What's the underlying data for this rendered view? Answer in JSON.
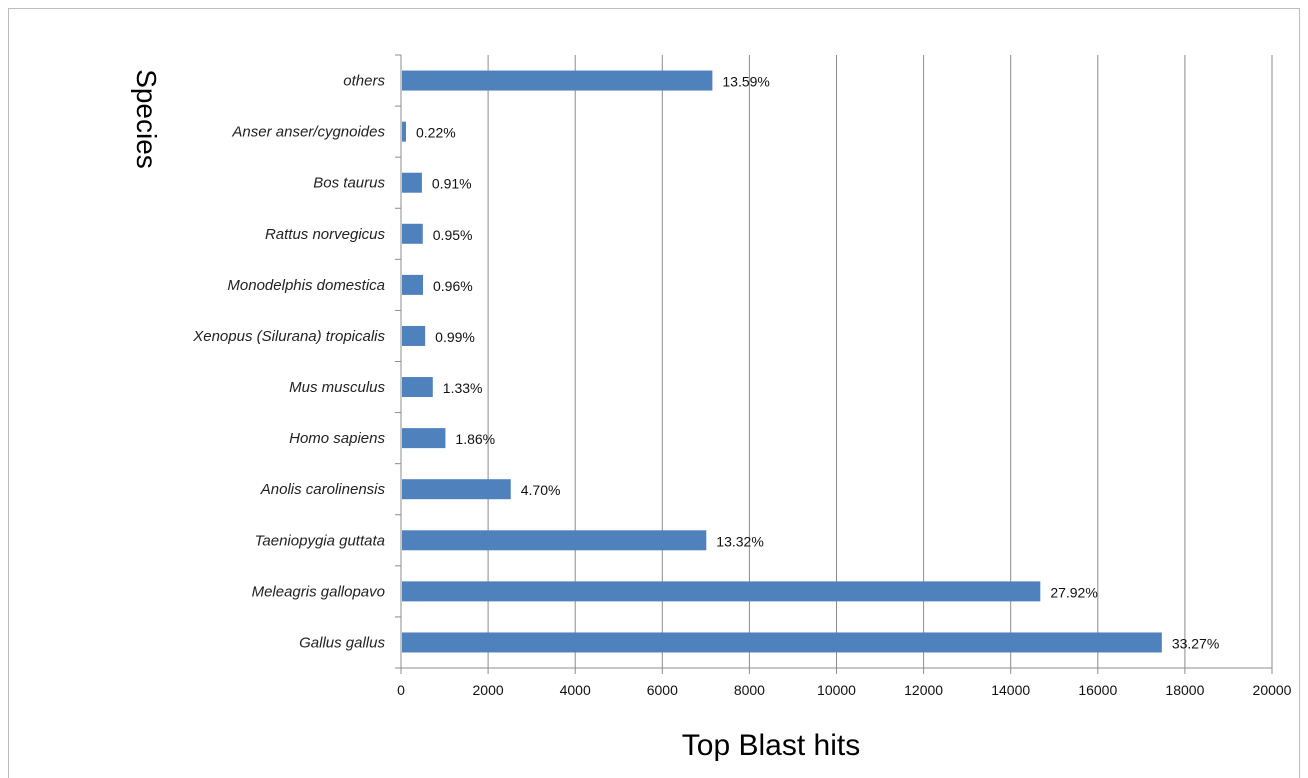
{
  "chart_data": {
    "type": "bar",
    "orientation": "horizontal",
    "categories": [
      "others",
      "Anser anser/cygnoides",
      "Bos taurus",
      "Rattus norvegicus",
      "Monodelphis domestica",
      "Xenopus (Silurana) tropicalis",
      "Mus musculus",
      "Homo sapiens",
      "Anolis carolinensis",
      "Taeniopygia guttata",
      "Meleagris gallopavo",
      "Gallus gallus"
    ],
    "values": [
      7150,
      115,
      480,
      500,
      505,
      555,
      730,
      1020,
      2520,
      7010,
      14680,
      17470
    ],
    "data_labels": [
      "13.59%",
      "0.22%",
      "0.91%",
      "0.95%",
      "0.96%",
      "0.99%",
      "1.33%",
      "1.86%",
      "4.70%",
      "13.32%",
      "27.92%",
      "33.27%"
    ],
    "xlabel": "Top Blast hits",
    "ylabel": "Species",
    "xlim": [
      0,
      20000
    ],
    "x_ticks": [
      "0",
      "2000",
      "4000",
      "6000",
      "8000",
      "10000",
      "12000",
      "14000",
      "16000",
      "18000",
      "20000"
    ],
    "grid": "vertical",
    "legend": "none",
    "bar_color": "#4f81bd"
  }
}
